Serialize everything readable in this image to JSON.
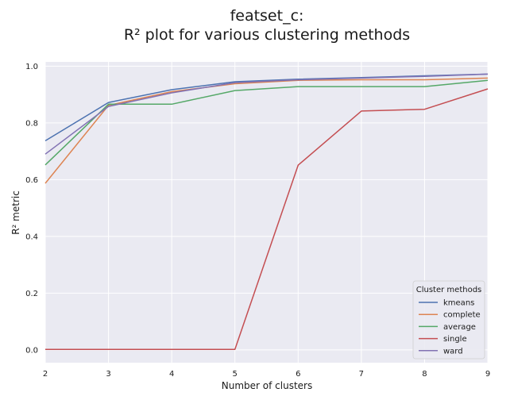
{
  "chart_data": {
    "type": "line",
    "title_line1": "featset_c:",
    "title_line2": "R² plot for various clustering methods",
    "xlabel": "Number of clusters",
    "ylabel": "R² metric",
    "x": [
      2,
      3,
      4,
      5,
      6,
      7,
      8,
      9
    ],
    "xlim": [
      2,
      9
    ],
    "ylim": [
      -0.045,
      1.015
    ],
    "xticks": [
      "2",
      "3",
      "4",
      "5",
      "6",
      "7",
      "8",
      "9"
    ],
    "yticks": [
      "0.0",
      "0.2",
      "0.4",
      "0.6",
      "0.8",
      "1.0"
    ],
    "ytick_values": [
      0.0,
      0.2,
      0.4,
      0.6,
      0.8,
      1.0
    ],
    "grid": true,
    "legend_title": "Cluster methods",
    "legend_position": "lower right",
    "series": [
      {
        "name": "kmeans",
        "color": "#4c72b0",
        "values": [
          0.737,
          0.872,
          0.917,
          0.945,
          0.954,
          0.96,
          0.966,
          0.972
        ]
      },
      {
        "name": "complete",
        "color": "#dd8452",
        "values": [
          0.587,
          0.862,
          0.91,
          0.938,
          0.95,
          0.952,
          0.952,
          0.958
        ]
      },
      {
        "name": "average",
        "color": "#55a868",
        "values": [
          0.652,
          0.866,
          0.866,
          0.914,
          0.928,
          0.928,
          0.928,
          0.95
        ]
      },
      {
        "name": "single",
        "color": "#c44e52",
        "values": [
          0.002,
          0.002,
          0.002,
          0.002,
          0.651,
          0.842,
          0.848,
          0.92
        ]
      },
      {
        "name": "ward",
        "color": "#8172b3",
        "values": [
          0.69,
          0.858,
          0.906,
          0.942,
          0.952,
          0.958,
          0.964,
          0.972
        ]
      }
    ]
  }
}
